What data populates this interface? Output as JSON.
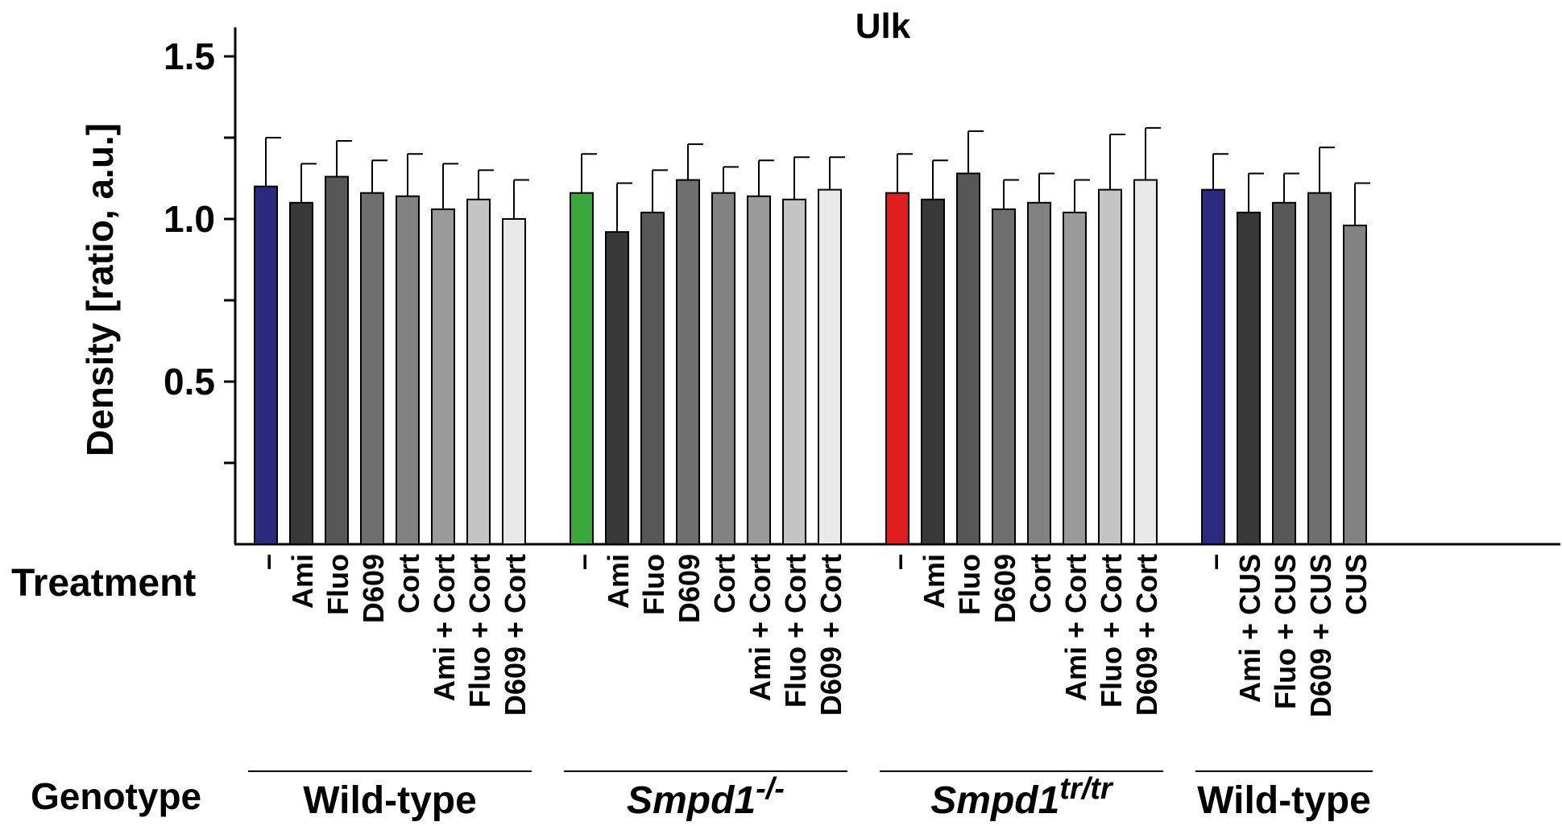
{
  "chart_data": {
    "type": "bar",
    "title": "Ulk",
    "ylabel": "Density [ratio, a.u.]",
    "ylim": [
      0,
      1.6
    ],
    "yticks": [
      {
        "value": 0.25,
        "label": ""
      },
      {
        "value": 0.5,
        "label": "0.5"
      },
      {
        "value": 0.75,
        "label": ""
      },
      {
        "value": 1.0,
        "label": "1.0"
      },
      {
        "value": 1.25,
        "label": ""
      },
      {
        "value": 1.5,
        "label": "1.5"
      }
    ],
    "row_labels": {
      "treatment": "Treatment",
      "genotype": "Genotype"
    },
    "groups": [
      {
        "genotype": "Wild-type",
        "genotype_sup": "",
        "italic": false,
        "bars": [
          {
            "label": "–",
            "value": 1.1,
            "error": 0.15,
            "color": "#2b2a7e"
          },
          {
            "label": "Ami",
            "value": 1.05,
            "error": 0.12,
            "color": "#383838"
          },
          {
            "label": "Fluo",
            "value": 1.13,
            "error": 0.11,
            "color": "#575757"
          },
          {
            "label": "D609",
            "value": 1.08,
            "error": 0.1,
            "color": "#6e6e6e"
          },
          {
            "label": "Cort",
            "value": 1.07,
            "error": 0.13,
            "color": "#828282"
          },
          {
            "label": "Ami + Cort",
            "value": 1.03,
            "error": 0.14,
            "color": "#9a9a9a"
          },
          {
            "label": "Fluo + Cort",
            "value": 1.06,
            "error": 0.09,
            "color": "#c4c4c4"
          },
          {
            "label": "D609 + Cort",
            "value": 1.0,
            "error": 0.12,
            "color": "#e8e8e8"
          }
        ]
      },
      {
        "genotype": "Smpd1",
        "genotype_sup": "-/-",
        "italic": true,
        "bars": [
          {
            "label": "–",
            "value": 1.08,
            "error": 0.12,
            "color": "#3aa83a"
          },
          {
            "label": "Ami",
            "value": 0.96,
            "error": 0.15,
            "color": "#383838"
          },
          {
            "label": "Fluo",
            "value": 1.02,
            "error": 0.13,
            "color": "#575757"
          },
          {
            "label": "D609",
            "value": 1.12,
            "error": 0.11,
            "color": "#6e6e6e"
          },
          {
            "label": "Cort",
            "value": 1.08,
            "error": 0.08,
            "color": "#828282"
          },
          {
            "label": "Ami + Cort",
            "value": 1.07,
            "error": 0.11,
            "color": "#9a9a9a"
          },
          {
            "label": "Fluo + Cort",
            "value": 1.06,
            "error": 0.13,
            "color": "#c4c4c4"
          },
          {
            "label": "D609 + Cort",
            "value": 1.09,
            "error": 0.1,
            "color": "#e8e8e8"
          }
        ]
      },
      {
        "genotype": "Smpd1",
        "genotype_sup": "tr/tr",
        "italic": true,
        "bars": [
          {
            "label": "–",
            "value": 1.08,
            "error": 0.12,
            "color": "#e01e1e"
          },
          {
            "label": "Ami",
            "value": 1.06,
            "error": 0.12,
            "color": "#383838"
          },
          {
            "label": "Fluo",
            "value": 1.14,
            "error": 0.13,
            "color": "#575757"
          },
          {
            "label": "D609",
            "value": 1.03,
            "error": 0.09,
            "color": "#6e6e6e"
          },
          {
            "label": "Cort",
            "value": 1.05,
            "error": 0.09,
            "color": "#828282"
          },
          {
            "label": "Ami + Cort",
            "value": 1.02,
            "error": 0.1,
            "color": "#9a9a9a"
          },
          {
            "label": "Fluo + Cort",
            "value": 1.09,
            "error": 0.17,
            "color": "#c4c4c4"
          },
          {
            "label": "D609 + Cort",
            "value": 1.12,
            "error": 0.16,
            "color": "#e8e8e8"
          }
        ]
      },
      {
        "genotype": "Wild-type",
        "genotype_sup": "",
        "italic": false,
        "bars": [
          {
            "label": "–",
            "value": 1.09,
            "error": 0.11,
            "color": "#2b2a7e"
          },
          {
            "label": "Ami + CUS",
            "value": 1.02,
            "error": 0.12,
            "color": "#383838"
          },
          {
            "label": "Fluo + CUS",
            "value": 1.05,
            "error": 0.09,
            "color": "#575757"
          },
          {
            "label": "D609 + CUS",
            "value": 1.08,
            "error": 0.14,
            "color": "#6e6e6e"
          },
          {
            "label": "CUS",
            "value": 0.98,
            "error": 0.13,
            "color": "#828282"
          }
        ]
      }
    ]
  }
}
